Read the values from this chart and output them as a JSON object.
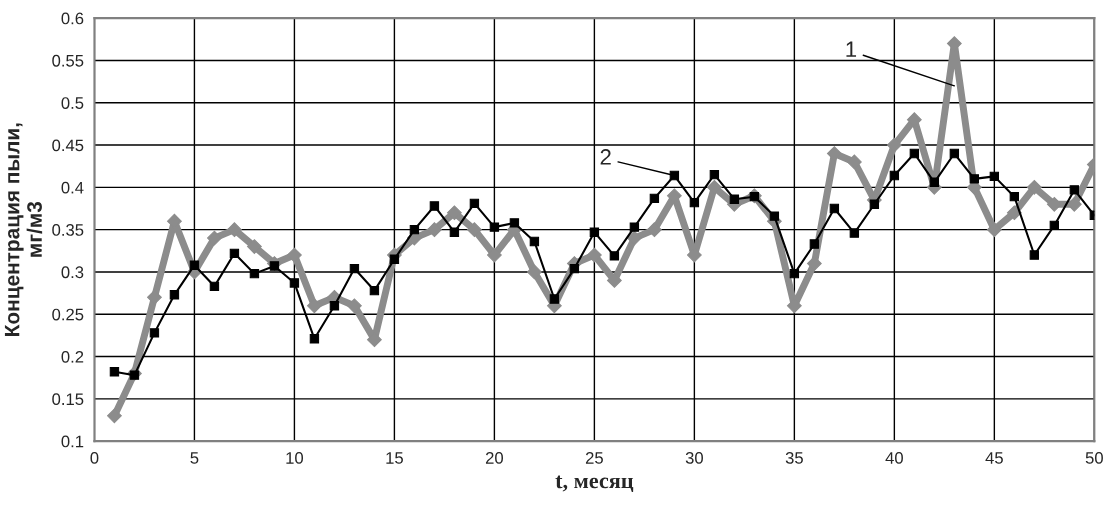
{
  "chart_data": {
    "type": "line",
    "xlabel": "t, месяц",
    "ylabel": "Концентрация пыли,\nмг/м3",
    "x": [
      1,
      2,
      3,
      4,
      5,
      6,
      7,
      8,
      9,
      10,
      11,
      12,
      13,
      14,
      15,
      16,
      17,
      18,
      19,
      20,
      21,
      22,
      23,
      24,
      25,
      26,
      27,
      28,
      29,
      30,
      31,
      32,
      33,
      34,
      35,
      36,
      37,
      38,
      39,
      40,
      41,
      42,
      43,
      44,
      45,
      46,
      47,
      48,
      49,
      50
    ],
    "series": [
      {
        "color": "#8c8c8c",
        "marker": "diamond",
        "values": [
          0.13,
          0.18,
          0.27,
          0.36,
          0.3,
          0.34,
          0.35,
          0.33,
          0.31,
          0.32,
          0.26,
          0.27,
          0.26,
          0.22,
          0.32,
          0.34,
          0.35,
          0.37,
          0.35,
          0.32,
          0.35,
          0.3,
          0.26,
          0.31,
          0.32,
          0.29,
          0.34,
          0.35,
          0.39,
          0.32,
          0.4,
          0.38,
          0.39,
          0.36,
          0.26,
          0.31,
          0.44,
          0.43,
          0.385,
          0.45,
          0.48,
          0.4,
          0.57,
          0.4,
          0.35,
          0.37,
          0.4,
          0.38,
          0.38,
          0.427
        ]
      },
      {
        "color": "#000000",
        "marker": "square",
        "values": [
          0.182,
          0.178,
          0.228,
          0.273,
          0.308,
          0.283,
          0.322,
          0.298,
          0.307,
          0.287,
          0.221,
          0.26,
          0.304,
          0.278,
          0.315,
          0.35,
          0.378,
          0.347,
          0.381,
          0.353,
          0.358,
          0.336,
          0.268,
          0.304,
          0.347,
          0.319,
          0.353,
          0.387,
          0.414,
          0.382,
          0.415,
          0.386,
          0.389,
          0.366,
          0.298,
          0.333,
          0.375,
          0.346,
          0.38,
          0.414,
          0.44,
          0.406,
          0.44,
          0.41,
          0.413,
          0.389,
          0.32,
          0.355,
          0.397,
          0.367
        ]
      }
    ],
    "annotations": [
      {
        "text": "1",
        "x": 43,
        "y": 0.52
      },
      {
        "text": "2",
        "x": 29,
        "y": 0.414
      }
    ],
    "xlim": [
      0,
      50
    ],
    "xticks": [
      0,
      5,
      10,
      15,
      20,
      25,
      30,
      35,
      40,
      45,
      50
    ],
    "ylim": [
      0.1,
      0.6
    ],
    "yticks": [
      0.1,
      0.15,
      0.2,
      0.25,
      0.3,
      0.35,
      0.4,
      0.45,
      0.5,
      0.55,
      0.6
    ],
    "grid": true,
    "legend": false
  }
}
